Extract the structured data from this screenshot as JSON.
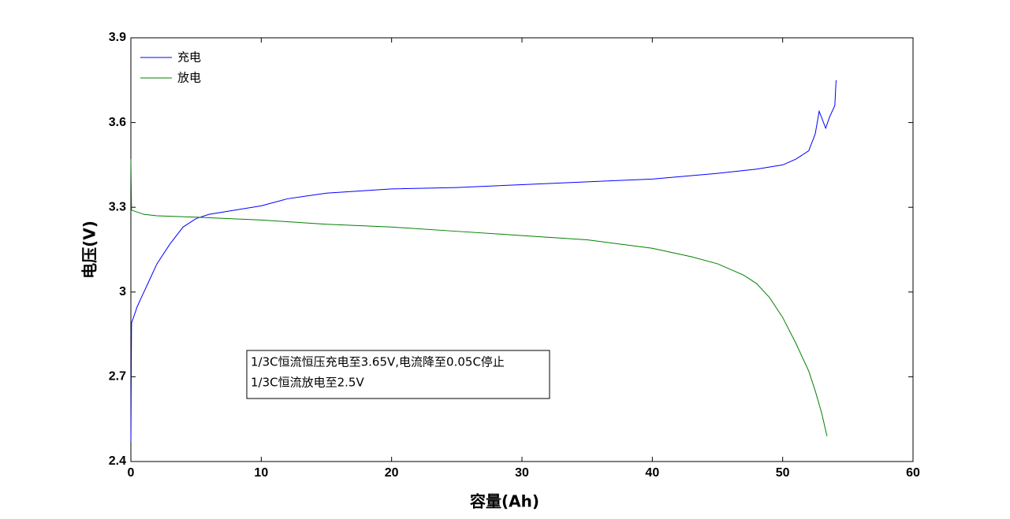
{
  "chart_data": {
    "type": "line",
    "xlabel": "容量(Ah)",
    "ylabel": "电压(V)",
    "xlim": [
      0,
      60
    ],
    "xticks": [
      0,
      10,
      20,
      30,
      40,
      50,
      60
    ],
    "ylim": [
      2.4,
      3.9
    ],
    "yticks": [
      2.4,
      2.7,
      3,
      3.3,
      3.6,
      3.9
    ],
    "legend": "upper left",
    "annotations": [
      "1/3C恒流恒压充电至3.65V,电流降至0.05C停止",
      "1/3C恒流放电至2.5V"
    ],
    "series": [
      {
        "name": "充电",
        "color": "#0000ff",
        "x": [
          0,
          0.05,
          0.5,
          1,
          1.5,
          2,
          3,
          4,
          5,
          6,
          8,
          10,
          12,
          15,
          20,
          25,
          30,
          35,
          40,
          45,
          48,
          50,
          51,
          52,
          52.5,
          52.8,
          53.3,
          53.6,
          54,
          54.1
        ],
        "values": [
          2.47,
          2.89,
          2.95,
          3.0,
          3.05,
          3.1,
          3.17,
          3.23,
          3.26,
          3.275,
          3.29,
          3.305,
          3.33,
          3.35,
          3.365,
          3.37,
          3.38,
          3.39,
          3.4,
          3.42,
          3.435,
          3.45,
          3.47,
          3.5,
          3.56,
          3.64,
          3.58,
          3.62,
          3.66,
          3.75
        ]
      },
      {
        "name": "放电",
        "color": "#008000",
        "x": [
          0,
          0.05,
          1,
          2,
          5,
          10,
          15,
          20,
          25,
          30,
          35,
          40,
          43,
          45,
          47,
          48,
          49,
          50,
          51,
          52,
          52.5,
          53,
          53.4
        ],
        "values": [
          3.47,
          3.29,
          3.275,
          3.27,
          3.265,
          3.255,
          3.24,
          3.23,
          3.215,
          3.2,
          3.185,
          3.155,
          3.125,
          3.1,
          3.06,
          3.03,
          2.98,
          2.91,
          2.82,
          2.72,
          2.65,
          2.57,
          2.49
        ]
      }
    ]
  }
}
